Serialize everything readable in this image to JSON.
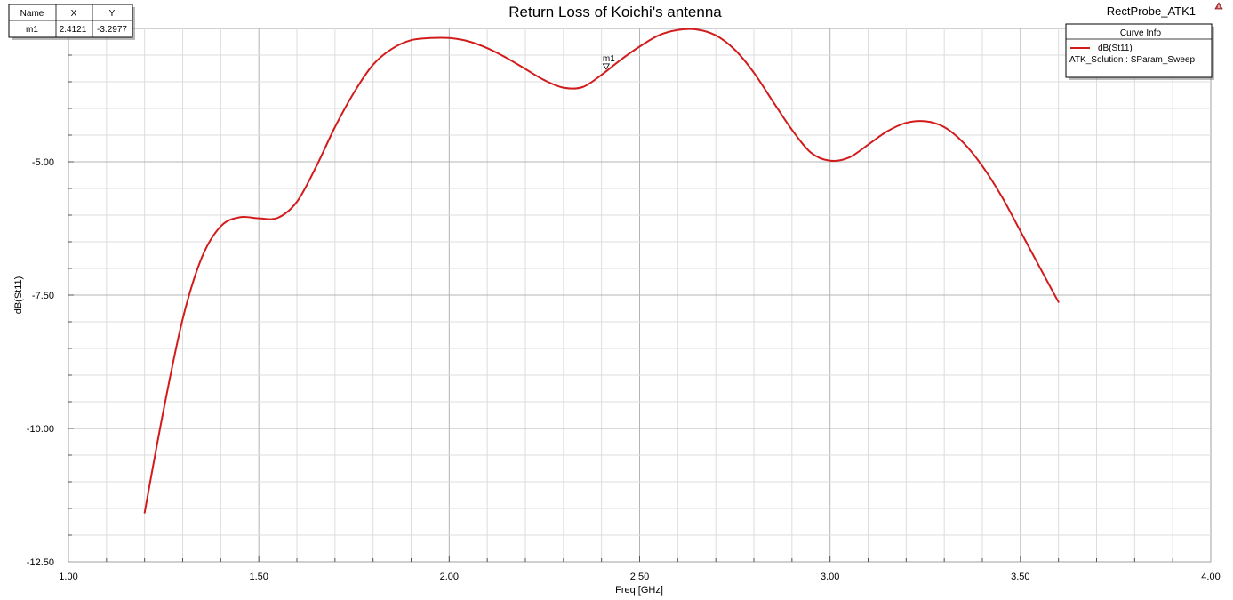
{
  "header": {
    "title": "Return Loss of Koichi's antenna",
    "project": "RectProbe_ATK1"
  },
  "marker_table": {
    "headers": [
      "Name",
      "X",
      "Y"
    ],
    "rows": [
      [
        "m1",
        "2.4121",
        "-3.2977"
      ]
    ]
  },
  "curve_info": {
    "title": "Curve Info",
    "trace": "dB(St11)",
    "solution": "ATK_Solution : SParam_Sweep"
  },
  "marker": {
    "label": "m1",
    "x": 2.4121,
    "y": -3.2977
  },
  "colors": {
    "trace": "#d21c1c",
    "grid": "#c8c8c8",
    "project_icon": "#d05050"
  },
  "chart_data": {
    "type": "line",
    "title": "Return Loss of Koichi's antenna",
    "xlabel": "Freq [GHz]",
    "ylabel": "dB(St11)",
    "xlim": [
      1.0,
      4.0
    ],
    "ylim": [
      -12.5,
      -2.5
    ],
    "x_ticks": [
      1.0,
      1.5,
      2.0,
      2.5,
      3.0,
      3.5,
      4.0
    ],
    "x_tick_labels": [
      "1.00",
      "1.50",
      "2.00",
      "2.50",
      "3.00",
      "3.50",
      "4.00"
    ],
    "y_ticks": [
      -12.5,
      -10.0,
      -7.5,
      -5.0
    ],
    "y_tick_labels": [
      "-12.50",
      "-10.00",
      "-7.50",
      "-5.00"
    ],
    "grid": true,
    "legend": "top-right",
    "series": [
      {
        "name": "dB(St11)",
        "x": [
          1.2,
          1.25,
          1.3,
          1.35,
          1.4,
          1.45,
          1.5,
          1.55,
          1.6,
          1.65,
          1.7,
          1.75,
          1.8,
          1.85,
          1.9,
          1.95,
          2.0,
          2.05,
          2.1,
          2.15,
          2.2,
          2.25,
          2.3,
          2.35,
          2.4,
          2.45,
          2.5,
          2.55,
          2.6,
          2.65,
          2.7,
          2.75,
          2.8,
          2.85,
          2.9,
          2.95,
          3.0,
          3.05,
          3.1,
          3.15,
          3.2,
          3.25,
          3.3,
          3.35,
          3.4,
          3.45,
          3.5,
          3.55,
          3.6
        ],
        "y": [
          -11.58,
          -9.65,
          -7.95,
          -6.8,
          -6.21,
          -6.04,
          -6.06,
          -6.05,
          -5.75,
          -5.1,
          -4.35,
          -3.7,
          -3.18,
          -2.88,
          -2.72,
          -2.68,
          -2.68,
          -2.74,
          -2.87,
          -3.05,
          -3.26,
          -3.47,
          -3.61,
          -3.6,
          -3.37,
          -3.09,
          -2.84,
          -2.63,
          -2.53,
          -2.52,
          -2.63,
          -2.9,
          -3.33,
          -3.87,
          -4.4,
          -4.83,
          -4.98,
          -4.92,
          -4.68,
          -4.43,
          -4.27,
          -4.24,
          -4.35,
          -4.64,
          -5.08,
          -5.64,
          -6.3,
          -6.97,
          -7.63
        ]
      }
    ]
  }
}
